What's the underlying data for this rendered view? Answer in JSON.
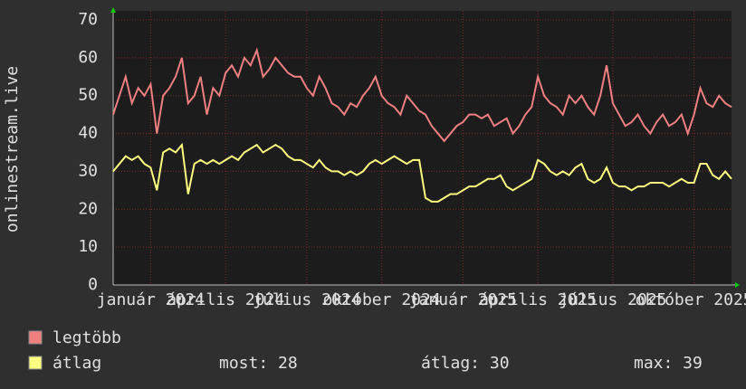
{
  "chart_data": {
    "type": "line",
    "ylabel": "onlinestream.live",
    "ylim": [
      0,
      70
    ],
    "yticks": [
      0,
      10,
      20,
      30,
      40,
      50,
      60,
      70
    ],
    "grid": true,
    "xticks": [
      {
        "value": 6,
        "label": "január 2024"
      },
      {
        "value": 18,
        "label": "április 2024"
      },
      {
        "value": 31,
        "label": "július 2024"
      },
      {
        "value": 43,
        "label": "október 2024"
      },
      {
        "value": 56,
        "label": "január 2025"
      },
      {
        "value": 68,
        "label": "április 2025"
      },
      {
        "value": 80,
        "label": "július 2025"
      },
      {
        "value": 93,
        "label": "október 2025"
      }
    ],
    "series": [
      {
        "name": "legtöbb",
        "color": "#f08080",
        "values": [
          45,
          50,
          55,
          48,
          52,
          50,
          53,
          40,
          50,
          52,
          55,
          60,
          48,
          50,
          55,
          45,
          52,
          50,
          56,
          58,
          55,
          60,
          58,
          62,
          55,
          57,
          60,
          58,
          56,
          55,
          55,
          52,
          50,
          55,
          52,
          48,
          47,
          45,
          48,
          47,
          50,
          52,
          55,
          50,
          48,
          47,
          45,
          50,
          48,
          46,
          45,
          42,
          40,
          38,
          40,
          42,
          43,
          45,
          45,
          44,
          45,
          42,
          43,
          44,
          40,
          42,
          45,
          47,
          55,
          50,
          48,
          47,
          45,
          50,
          48,
          50,
          47,
          45,
          50,
          58,
          48,
          45,
          42,
          43,
          45,
          42,
          40,
          43,
          45,
          42,
          43,
          45,
          40,
          45,
          52,
          48,
          47,
          50,
          48,
          47
        ]
      },
      {
        "name": "átlag",
        "color": "#ffff80",
        "values": [
          30,
          32,
          34,
          33,
          34,
          32,
          31,
          25,
          35,
          36,
          35,
          37,
          24,
          32,
          33,
          32,
          33,
          32,
          33,
          34,
          33,
          35,
          36,
          37,
          35,
          36,
          37,
          36,
          34,
          33,
          33,
          32,
          31,
          33,
          31,
          30,
          30,
          29,
          30,
          29,
          30,
          32,
          33,
          32,
          33,
          34,
          33,
          32,
          33,
          33,
          23,
          22,
          22,
          23,
          24,
          24,
          25,
          26,
          26,
          27,
          28,
          28,
          29,
          26,
          25,
          26,
          27,
          28,
          33,
          32,
          30,
          29,
          30,
          29,
          31,
          32,
          28,
          27,
          28,
          31,
          27,
          26,
          26,
          25,
          26,
          26,
          27,
          27,
          27,
          26,
          27,
          28,
          27,
          27,
          32,
          32,
          29,
          28,
          30,
          28
        ]
      }
    ],
    "stats": [
      "most: 28",
      "átlag: 30",
      "max: 39"
    ]
  }
}
